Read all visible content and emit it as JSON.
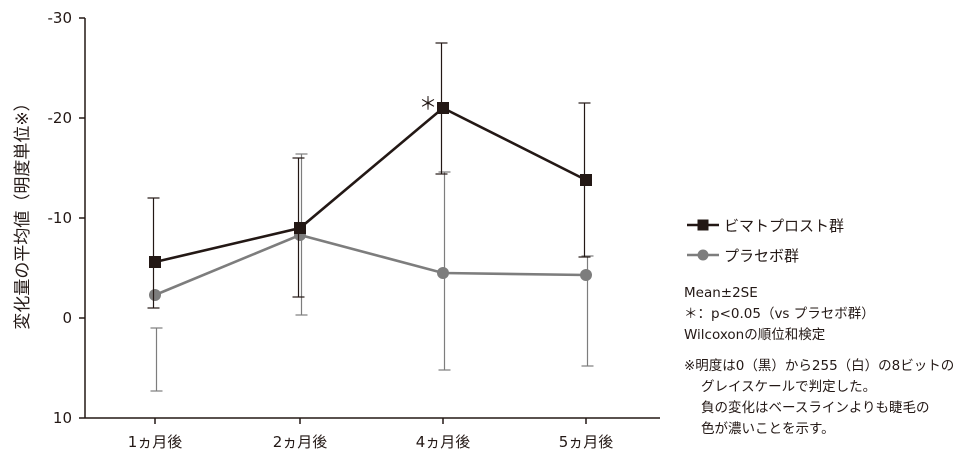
{
  "chart_data": {
    "type": "line",
    "categories": [
      "1ヵ月後",
      "2ヵ月後",
      "4ヵ月後",
      "5ヵ月後"
    ],
    "ylabel": "変化量の平均値（明度単位※）",
    "ylim": [
      10,
      -30
    ],
    "y_ticks": [
      "-30",
      "-20",
      "-10",
      "0",
      "10"
    ],
    "y_tick_values": [
      -30,
      -20,
      -10,
      0,
      10
    ],
    "series": [
      {
        "name": "ビマトプロスト群",
        "color": "#231815",
        "marker": "square",
        "values": [
          -5.6,
          -9.0,
          -21.0,
          -13.8
        ],
        "err_low": [
          -1.0,
          -2.1,
          -14.4,
          -6.1
        ],
        "err_high": [
          -12.0,
          -16.0,
          -27.5,
          -21.5
        ]
      },
      {
        "name": "プラセボ群",
        "color": "#7d7d7d",
        "marker": "circle",
        "values": [
          -2.3,
          -8.3,
          -4.5,
          -4.3
        ],
        "err_low": [
          7.3,
          -0.3,
          5.2,
          4.8
        ],
        "err_high": [
          1.0,
          -16.4,
          -14.6,
          -6.2
        ]
      }
    ],
    "annotations": [
      {
        "text": "＊",
        "category": "4ヵ月後"
      }
    ]
  },
  "notes": {
    "line1": "Mean±2SE",
    "line2": "＊：p<0.05（vs プラセボ群）",
    "line3": "Wilcoxonの順位和検定",
    "line4": "※明度は0（黒）から255（白）の8ビットの",
    "line5": "グレイスケールで判定した。",
    "line6": "負の変化はベースラインよりも睫毛の",
    "line7": "色が濃いことを示す。"
  }
}
